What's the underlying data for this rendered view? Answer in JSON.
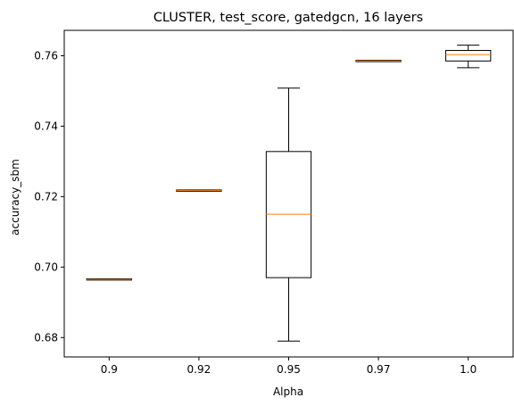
{
  "chart_data": {
    "type": "box",
    "title": "CLUSTER, test_score, gatedgcn, 16 layers",
    "xlabel": "Alpha",
    "ylabel": "accuracy_sbm",
    "categories": [
      "0.9",
      "0.92",
      "0.95",
      "0.97",
      "1.0"
    ],
    "boxes": [
      {
        "label": "0.9",
        "whislo": 0.6965,
        "q1": 0.6965,
        "med": 0.6965,
        "q3": 0.6965,
        "whishi": 0.6965
      },
      {
        "label": "0.92",
        "whislo": 0.7217,
        "q1": 0.7217,
        "med": 0.7217,
        "q3": 0.7217,
        "whishi": 0.7217
      },
      {
        "label": "0.95",
        "whislo": 0.679,
        "q1": 0.697,
        "med": 0.715,
        "q3": 0.7328,
        "whishi": 0.7508
      },
      {
        "label": "0.97",
        "whislo": 0.7585,
        "q1": 0.7585,
        "med": 0.7585,
        "q3": 0.7585,
        "whishi": 0.7585
      },
      {
        "label": "1.0",
        "whislo": 0.7566,
        "q1": 0.7585,
        "med": 0.7603,
        "q3": 0.7615,
        "whishi": 0.763
      }
    ],
    "ylim": [
      0.6745,
      0.7672
    ],
    "yticks": [
      0.68,
      0.7,
      0.72,
      0.74,
      0.76
    ],
    "ytick_labels": [
      "0.68",
      "0.70",
      "0.72",
      "0.74",
      "0.76"
    ],
    "grid": false,
    "colors": {
      "box": "#000000",
      "median": "#ff7f0e"
    }
  }
}
